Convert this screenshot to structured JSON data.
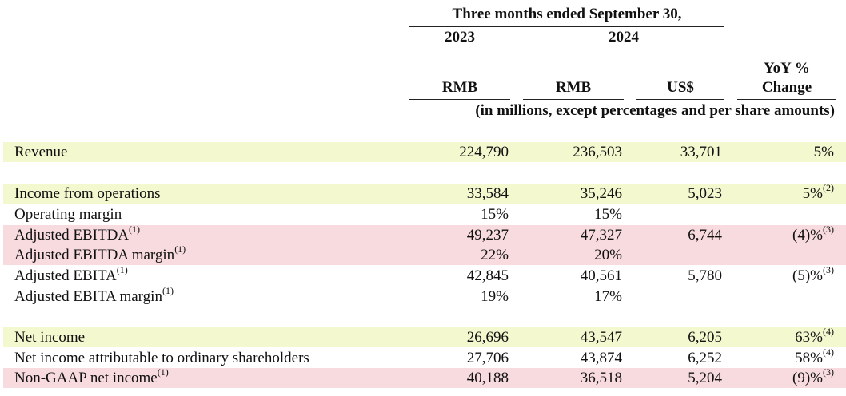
{
  "header": {
    "period_title": "Three months ended September 30,",
    "year_2023": "2023",
    "year_2024": "2024",
    "col_rmb_2023": "RMB",
    "col_rmb_2024": "RMB",
    "col_usd": "US$",
    "col_yoy_line1": "YoY %",
    "col_yoy_line2": "Change",
    "units_note": "(in millions, except percentages and per share amounts)"
  },
  "rows": [
    {
      "label": "Revenue",
      "sup": "",
      "rmb_2023": "224,790",
      "rmb_2024": "236,503",
      "usd": "33,701",
      "yoy": "5%",
      "yoy_sup": "",
      "highlight": "yellow"
    },
    {
      "label": "Income from operations",
      "sup": "",
      "rmb_2023": "33,584",
      "rmb_2024": "35,246",
      "usd": "5,023",
      "yoy": "5%",
      "yoy_sup": "(2)",
      "highlight": "yellow"
    },
    {
      "label": "Operating margin",
      "sup": "",
      "rmb_2023": "15%",
      "rmb_2024": "15%",
      "usd": "",
      "yoy": "",
      "yoy_sup": "",
      "highlight": "none"
    },
    {
      "label": "Adjusted EBITDA",
      "sup": "(1)",
      "rmb_2023": "49,237",
      "rmb_2024": "47,327",
      "usd": "6,744",
      "yoy": "(4)%",
      "yoy_sup": "(3)",
      "highlight": "pink"
    },
    {
      "label": "Adjusted EBITDA margin",
      "sup": "(1)",
      "rmb_2023": "22%",
      "rmb_2024": "20%",
      "usd": "",
      "yoy": "",
      "yoy_sup": "",
      "highlight": "pink"
    },
    {
      "label": "Adjusted EBITA",
      "sup": "(1)",
      "rmb_2023": "42,845",
      "rmb_2024": "40,561",
      "usd": "5,780",
      "yoy": "(5)%",
      "yoy_sup": "(3)",
      "highlight": "none"
    },
    {
      "label": "Adjusted EBITA margin",
      "sup": "(1)",
      "rmb_2023": "19%",
      "rmb_2024": "17%",
      "usd": "",
      "yoy": "",
      "yoy_sup": "",
      "highlight": "none"
    },
    {
      "label": "Net income",
      "sup": "",
      "rmb_2023": "26,696",
      "rmb_2024": "43,547",
      "usd": "6,205",
      "yoy": "63%",
      "yoy_sup": "(4)",
      "highlight": "yellow"
    },
    {
      "label": "Net income attributable to ordinary shareholders",
      "sup": "",
      "rmb_2023": "27,706",
      "rmb_2024": "43,874",
      "usd": "6,252",
      "yoy": "58%",
      "yoy_sup": "(4)",
      "highlight": "none"
    },
    {
      "label": "Non-GAAP net income",
      "sup": "(1)",
      "rmb_2023": "40,188",
      "rmb_2024": "36,518",
      "usd": "5,204",
      "yoy": "(9)%",
      "yoy_sup": "(3)",
      "highlight": "pink"
    }
  ],
  "colors": {
    "highlight_yellow": "#f3f8cf",
    "highlight_pink": "#f8dbdf",
    "text": "#111111"
  }
}
